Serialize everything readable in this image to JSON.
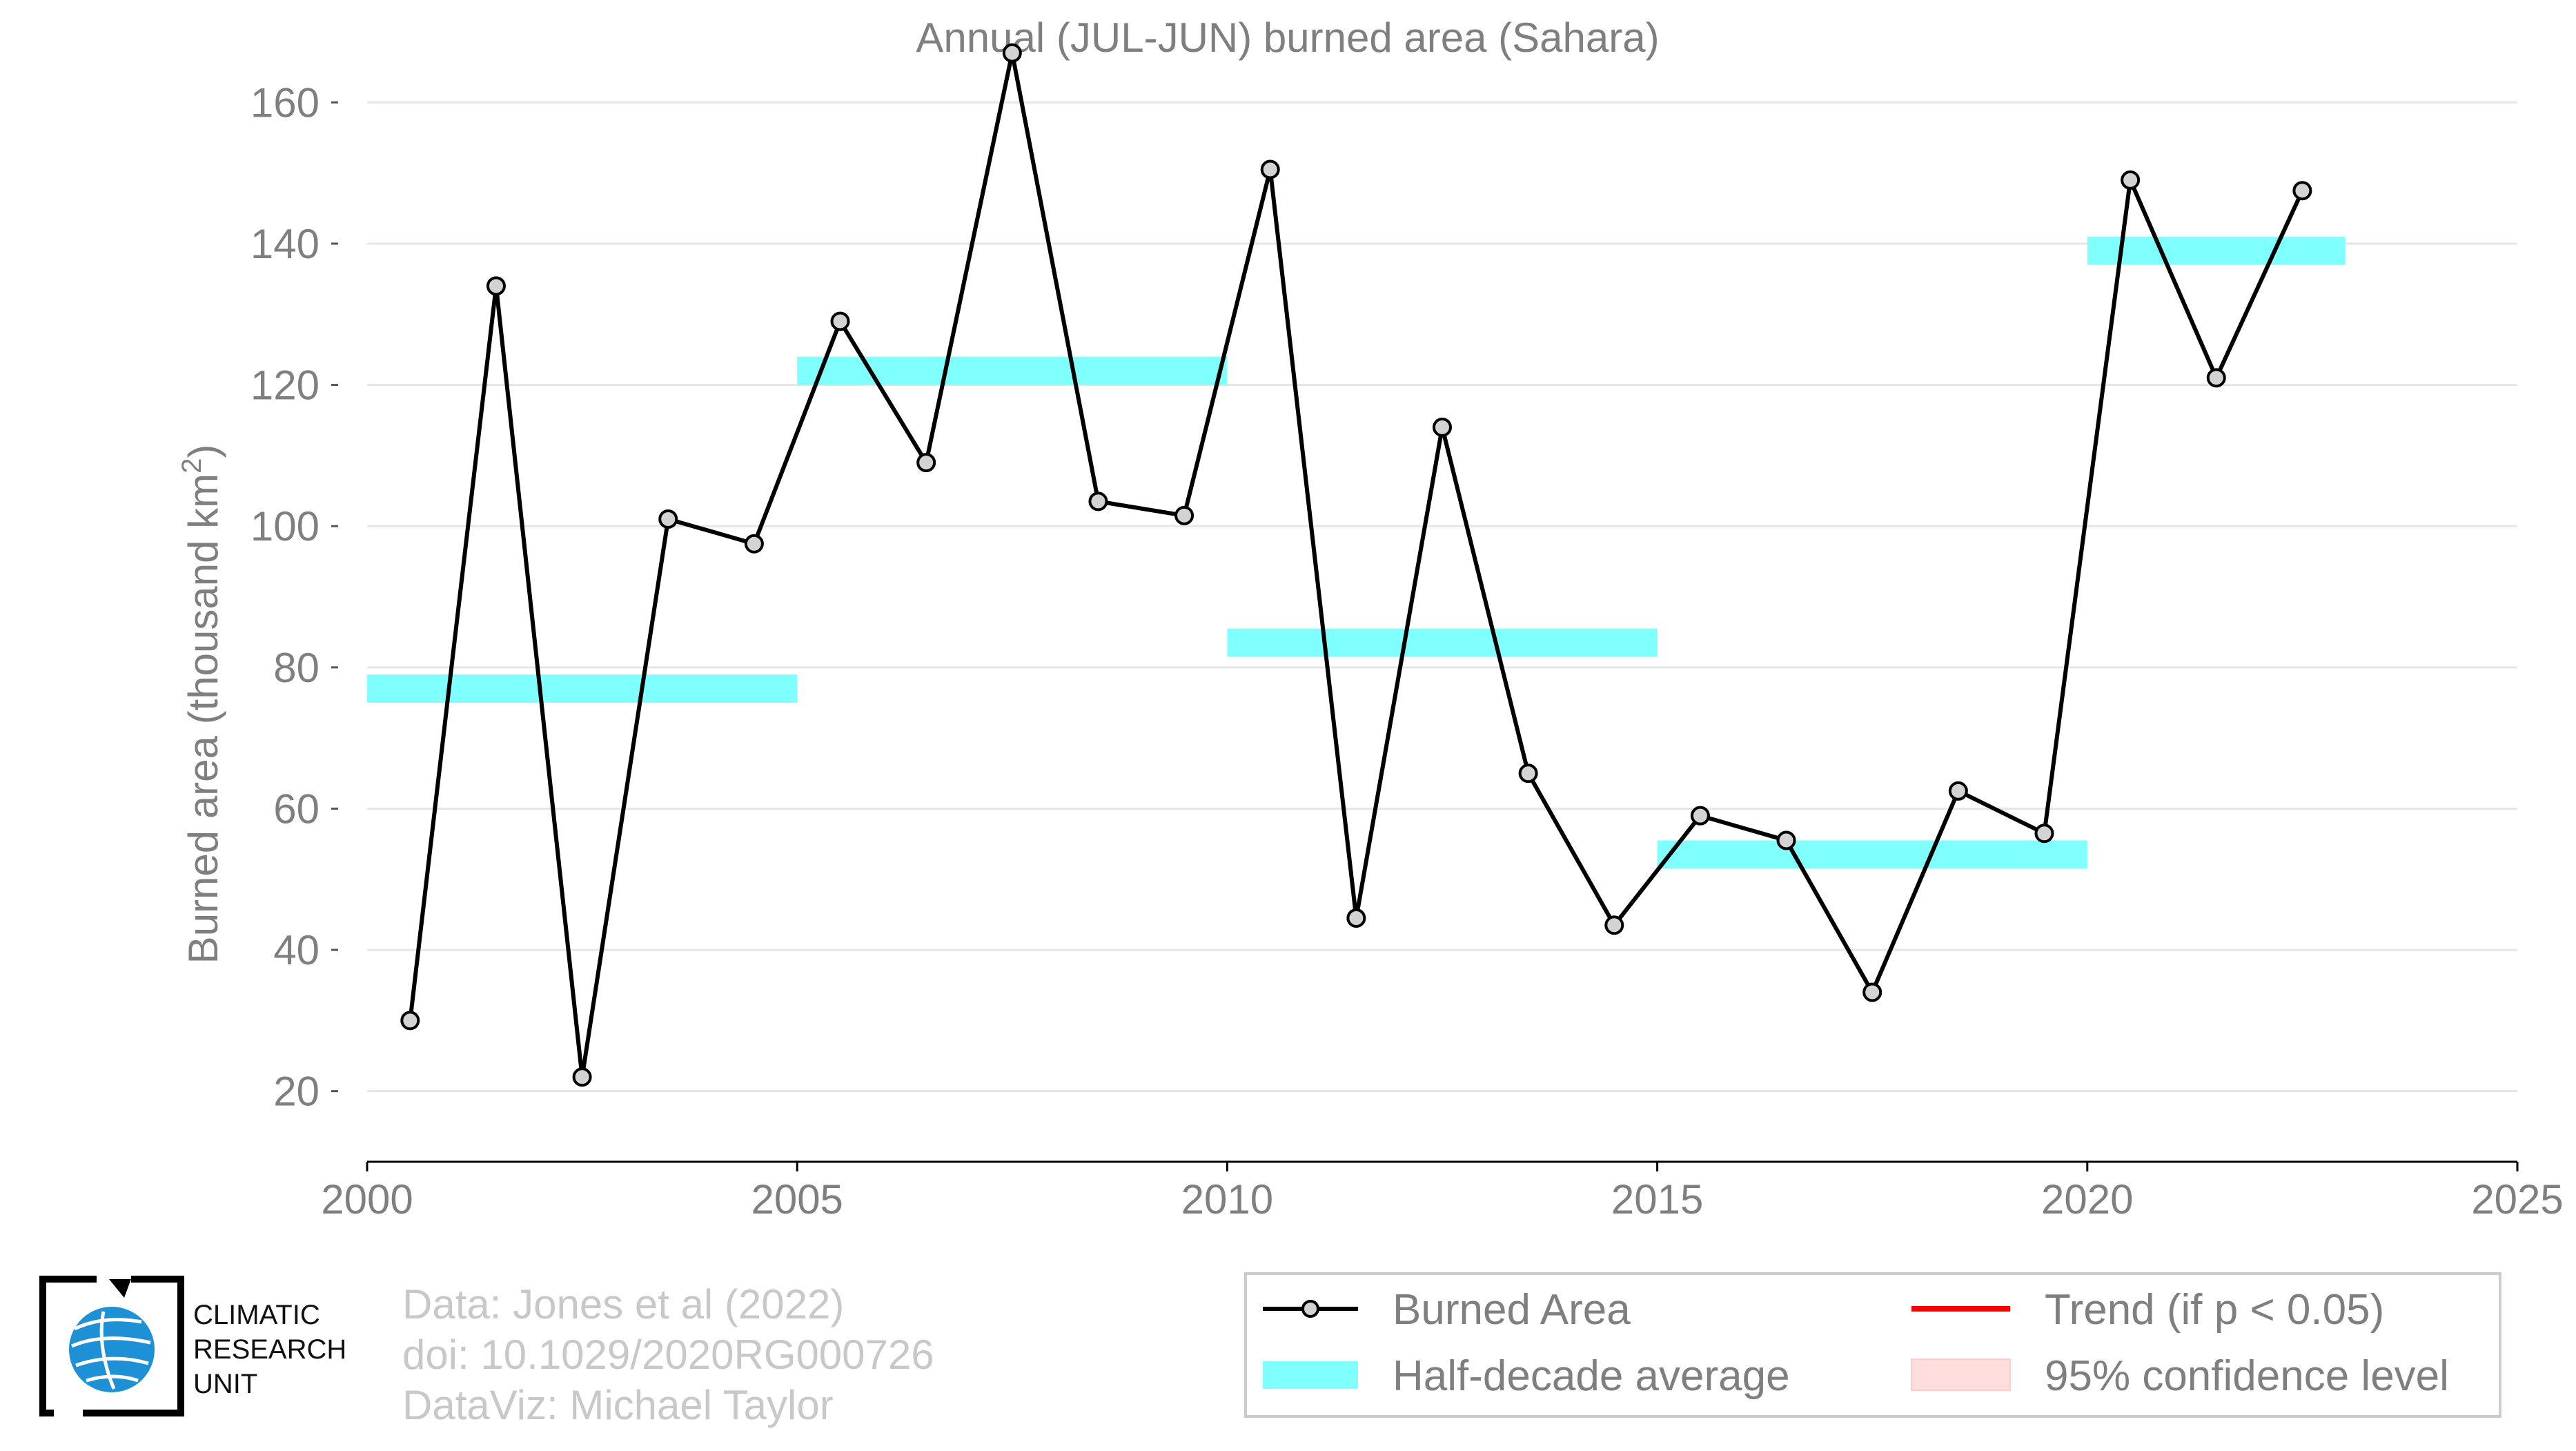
{
  "chart_data": {
    "type": "line",
    "title": "Annual (JUL-JUN) burned area (Sahara)",
    "ylabel": "Burned area (thousand km",
    "ylabel_sup": "2",
    "ylabel_end": ")",
    "xlim": [
      2000,
      2025
    ],
    "ylim": [
      10,
      170
    ],
    "xticks": [
      2000,
      2005,
      2010,
      2015,
      2020,
      2025
    ],
    "yticks": [
      20,
      40,
      60,
      80,
      100,
      120,
      140,
      160
    ],
    "grid": "horizontal",
    "series": [
      {
        "name": "Burned Area",
        "color": "#000000",
        "marker_fill": "#d3d3d3",
        "x": [
          2000.5,
          2001.5,
          2002.5,
          2003.5,
          2004.5,
          2005.5,
          2006.5,
          2007.5,
          2008.5,
          2009.5,
          2010.5,
          2011.5,
          2012.5,
          2013.5,
          2014.5,
          2015.5,
          2016.5,
          2017.5,
          2018.5,
          2019.5,
          2020.5,
          2021.5,
          2022.5
        ],
        "y": [
          30,
          134,
          22,
          101,
          97.5,
          129,
          109,
          167,
          103.5,
          101.5,
          150.5,
          44.5,
          114,
          65,
          43.5,
          59,
          55.5,
          34,
          62.5,
          56.5,
          149,
          121,
          147.5
        ]
      }
    ],
    "half_decade_average": {
      "name": "Half-decade average",
      "color": "#80ffff",
      "segments": [
        {
          "x0": 2000,
          "x1": 2005,
          "y": 77
        },
        {
          "x0": 2005,
          "x1": 2010,
          "y": 122
        },
        {
          "x0": 2010,
          "x1": 2015,
          "y": 83.5
        },
        {
          "x0": 2015,
          "x1": 2020,
          "y": 53.5
        },
        {
          "x0": 2020,
          "x1": 2023,
          "y": 139
        }
      ],
      "band_halfwidth": 2
    },
    "legend": {
      "placement": "bottom-right",
      "entries": [
        {
          "label": "Burned Area",
          "kind": "line-marker",
          "color": "#000000"
        },
        {
          "label": "Trend (if p < 0.05)",
          "kind": "line",
          "color": "#ff0000"
        },
        {
          "label": "Half-decade average",
          "kind": "patch",
          "color": "#80ffff"
        },
        {
          "label": "95% confidence level",
          "kind": "patch",
          "color": "#ffdddd"
        }
      ]
    }
  },
  "credits": {
    "line1": "Data: Jones et al (2022)",
    "line2": "doi: 10.1029/2020RG000726",
    "line3": "DataViz: Michael Taylor"
  },
  "logo": {
    "line1": "CLIMATIC",
    "line2": "RESEARCH",
    "line3": "UNIT",
    "globe_color": "#1e90d6"
  }
}
